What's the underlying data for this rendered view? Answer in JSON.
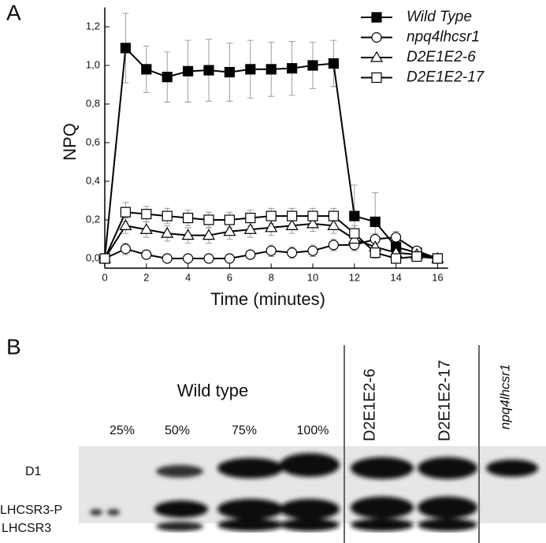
{
  "chart_data": {
    "type": "line",
    "panel_label": "A",
    "x_label": "Time (minutes)",
    "y_label": "NPQ",
    "x": [
      0,
      1,
      2,
      3,
      4,
      5,
      6,
      7,
      8,
      9,
      10,
      11,
      12,
      13,
      14,
      15,
      16
    ],
    "xlim": [
      0,
      16.5
    ],
    "xticks": [
      0,
      2,
      4,
      6,
      8,
      10,
      12,
      14,
      16
    ],
    "ylim": [
      -0.05,
      1.3
    ],
    "yticks": [
      {
        "value": 0,
        "label": "0,0"
      },
      {
        "value": 0.2,
        "label": "0,2"
      },
      {
        "value": 0.4,
        "label": "0,4"
      },
      {
        "value": 0.6,
        "label": "0,6"
      },
      {
        "value": 0.8,
        "label": "0,8"
      },
      {
        "value": 1.0,
        "label": "1,0"
      },
      {
        "value": 1.2,
        "label": "1,2"
      }
    ],
    "grid": false,
    "legend": "upper right",
    "series": [
      {
        "name": "Wild Type",
        "color": "#000000",
        "marker": "square-filled",
        "values": [
          0,
          1.09,
          0.98,
          0.94,
          0.97,
          0.975,
          0.965,
          0.98,
          0.98,
          0.985,
          1.0,
          1.01,
          0.22,
          0.19,
          0.06,
          0.03,
          0.0
        ],
        "errors": [
          0,
          0.18,
          0.12,
          0.13,
          0.16,
          0.16,
          0.15,
          0.15,
          0.14,
          0.14,
          0.12,
          0.12,
          0.16,
          0.15,
          0.03,
          0.02,
          0.01
        ]
      },
      {
        "name": "npq4lhcsr1",
        "color": "#000000",
        "marker": "circle-open",
        "values": [
          0,
          0.05,
          0.02,
          0.0,
          0.0,
          0.0,
          0.0,
          0.02,
          0.04,
          0.03,
          0.04,
          0.07,
          0.07,
          0.1,
          0.11,
          0.04,
          0.0
        ],
        "errors": [
          0,
          0.03,
          0.02,
          0.02,
          0.02,
          0.02,
          0.02,
          0.02,
          0.03,
          0.03,
          0.03,
          0.03,
          0.03,
          0.03,
          0.03,
          0.02,
          0.01
        ]
      },
      {
        "name": "D2E1E2-6",
        "color": "#000000",
        "marker": "triangle-open",
        "values": [
          0,
          0.17,
          0.15,
          0.13,
          0.12,
          0.12,
          0.14,
          0.15,
          0.16,
          0.17,
          0.18,
          0.17,
          0.1,
          0.06,
          0.03,
          0.02,
          0.0
        ],
        "errors": [
          0,
          0.04,
          0.04,
          0.04,
          0.04,
          0.04,
          0.04,
          0.04,
          0.04,
          0.04,
          0.04,
          0.04,
          0.04,
          0.03,
          0.02,
          0.02,
          0.01
        ]
      },
      {
        "name": "D2E1E2-17",
        "color": "#000000",
        "marker": "square-open",
        "values": [
          0,
          0.24,
          0.23,
          0.22,
          0.21,
          0.2,
          0.2,
          0.21,
          0.22,
          0.22,
          0.22,
          0.22,
          0.13,
          0.03,
          0.0,
          0.01,
          0.0
        ],
        "errors": [
          0,
          0.05,
          0.04,
          0.04,
          0.04,
          0.04,
          0.04,
          0.04,
          0.04,
          0.04,
          0.04,
          0.04,
          0.04,
          0.03,
          0.02,
          0.02,
          0.01
        ]
      }
    ]
  },
  "blot": {
    "panel_label": "B",
    "group_label": "Wild type",
    "lanes": [
      "25%",
      "50%",
      "75%",
      "100%",
      "D2E1E2-6",
      "D2E1E2-17",
      "npq4lhcsr1"
    ],
    "rows": [
      "D1",
      "LHCSR3-P",
      "LHCSR3"
    ]
  }
}
